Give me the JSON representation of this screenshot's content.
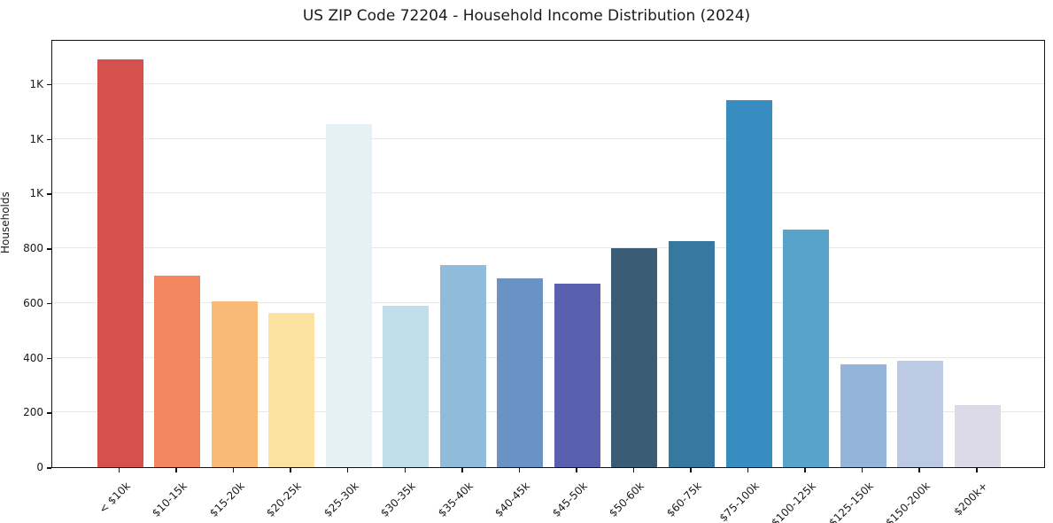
{
  "chart_data": {
    "type": "bar",
    "title": "US ZIP Code 72204 - Household Income Distribution (2024)",
    "xlabel": "",
    "ylabel": "Households",
    "categories": [
      "< $10k",
      "$10-15k",
      "$15-20k",
      "$20-25k",
      "$25-30k",
      "$30-35k",
      "$35-40k",
      "$40-45k",
      "$45-50k",
      "$50-60k",
      "$60-75k",
      "$75-100k",
      "$100-125k",
      "$125-150k",
      "$150-200k",
      "$200k+"
    ],
    "values": [
      1490,
      700,
      605,
      565,
      1255,
      590,
      740,
      690,
      670,
      800,
      825,
      1340,
      870,
      375,
      390,
      228
    ],
    "bar_colors": [
      "#d5514e",
      "#f2875f",
      "#f9b977",
      "#fde3a2",
      "#e6f1f6",
      "#bfdfea",
      "#8fbcda",
      "#6b92c5",
      "#5a5fae",
      "#3b5c75",
      "#36789f",
      "#378cc0",
      "#58a3ca",
      "#92b5d9",
      "#bccae4",
      "#dcdae7"
    ],
    "ylim": [
      0,
      1565
    ],
    "yticks": [
      0,
      200,
      400,
      600,
      800,
      1000,
      1200,
      1400
    ],
    "ytick_labels": [
      "0",
      "200",
      "400",
      "600",
      "800",
      "1K",
      "1K",
      "1K"
    ],
    "grid": "horizontal",
    "grid_color": "#e8e8e8",
    "legend": "none",
    "background_color": "#ffffff"
  }
}
